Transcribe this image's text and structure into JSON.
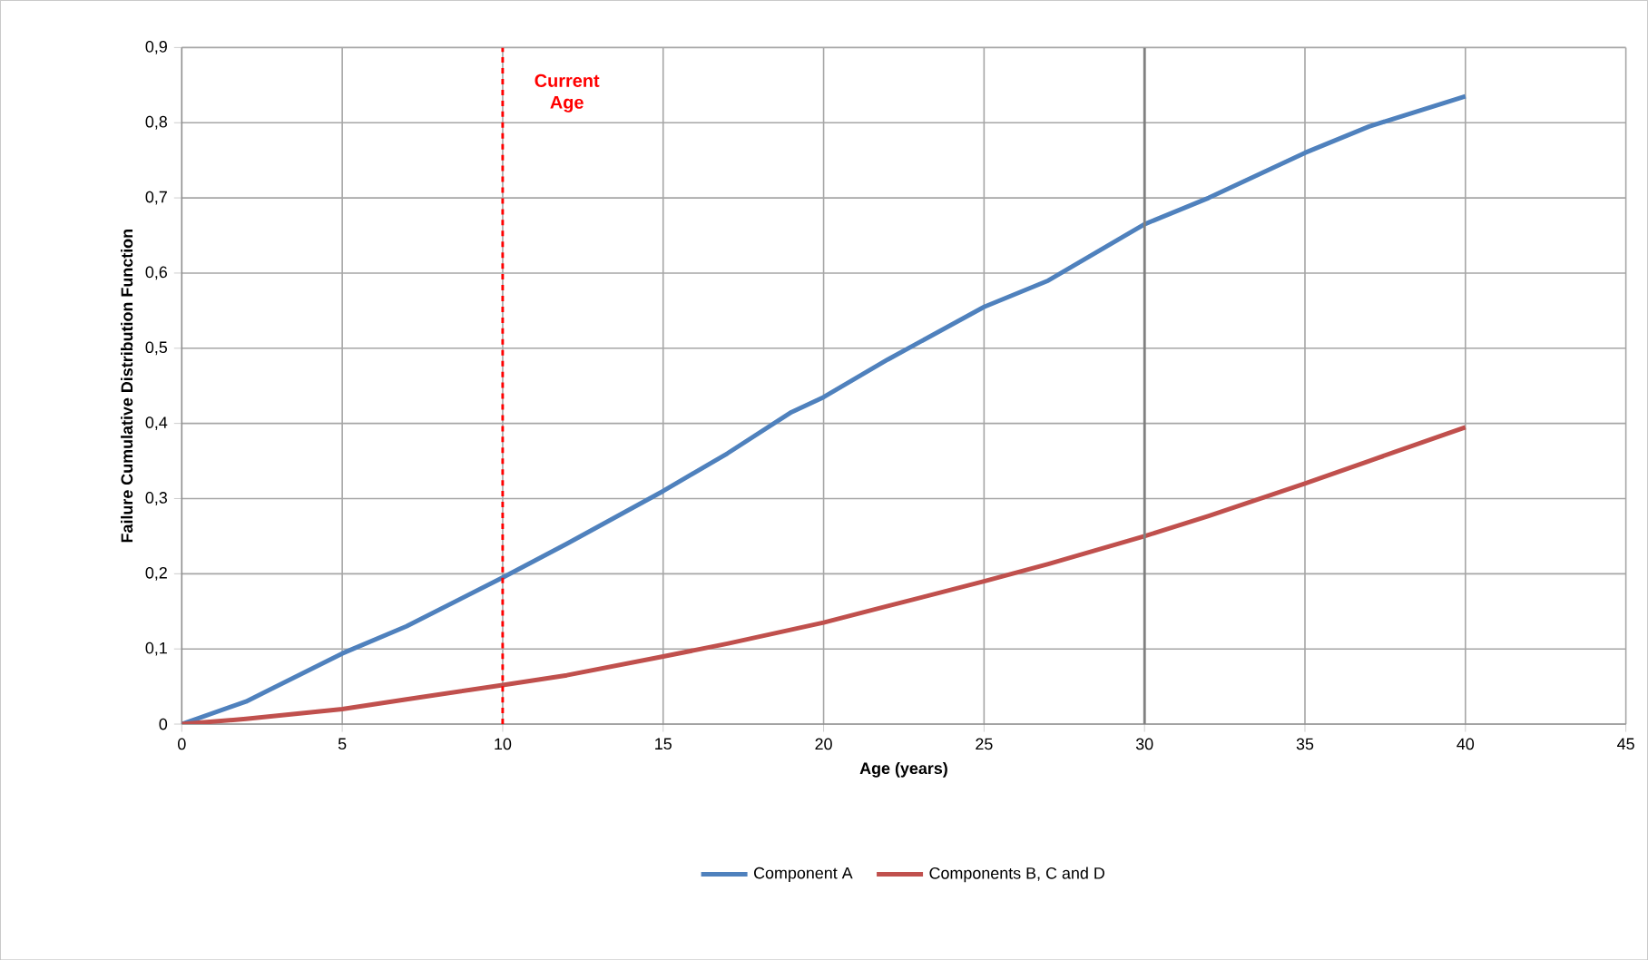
{
  "chart_data": {
    "type": "line",
    "xlabel": "Age (years)",
    "ylabel": "Failure Cumulative Distribution Function",
    "xlim": [
      0,
      45
    ],
    "xticks": [
      0,
      5,
      10,
      15,
      20,
      25,
      30,
      35,
      40,
      45
    ],
    "ylim": [
      0,
      0.9
    ],
    "yticks": [
      {
        "value": 0,
        "label": "0"
      },
      {
        "value": 0.1,
        "label": "0,1"
      },
      {
        "value": 0.2,
        "label": "0,2"
      },
      {
        "value": 0.3,
        "label": "0,3"
      },
      {
        "value": 0.4,
        "label": "0,4"
      },
      {
        "value": 0.5,
        "label": "0,5"
      },
      {
        "value": 0.6,
        "label": "0,6"
      },
      {
        "value": 0.7,
        "label": "0,7"
      },
      {
        "value": 0.8,
        "label": "0,8"
      },
      {
        "value": 0.9,
        "label": "0,9"
      }
    ],
    "grid": true,
    "legend": "bottom",
    "marker": "none",
    "line_style": "solid",
    "series": [
      {
        "name": "Component  A",
        "color": "#4f81bd",
        "x": [
          0,
          2,
          5,
          7,
          10,
          12,
          15,
          17,
          19,
          20,
          22,
          25,
          27,
          30,
          32,
          35,
          37,
          40
        ],
        "values": [
          0,
          0.03,
          0.094,
          0.13,
          0.195,
          0.24,
          0.31,
          0.36,
          0.415,
          0.435,
          0.485,
          0.555,
          0.59,
          0.665,
          0.7,
          0.76,
          0.795,
          0.835
        ]
      },
      {
        "name": "Components  B, C and D",
        "color": "#c0504d",
        "x": [
          0,
          2,
          5,
          7,
          10,
          12,
          15,
          17,
          20,
          22,
          25,
          27,
          30,
          32,
          35,
          37,
          40
        ],
        "values": [
          0,
          0.007,
          0.02,
          0.033,
          0.052,
          0.065,
          0.09,
          0.107,
          0.135,
          0.157,
          0.19,
          0.213,
          0.25,
          0.277,
          0.32,
          0.35,
          0.395
        ]
      }
    ],
    "ref_lines": [
      {
        "axis": "x",
        "value": 10,
        "label": "Current Age",
        "color": "#ff0000",
        "line_style": "dashed"
      },
      {
        "axis": "x",
        "value": 30,
        "label": null,
        "color": "#808080",
        "line_style": "solid"
      }
    ]
  }
}
